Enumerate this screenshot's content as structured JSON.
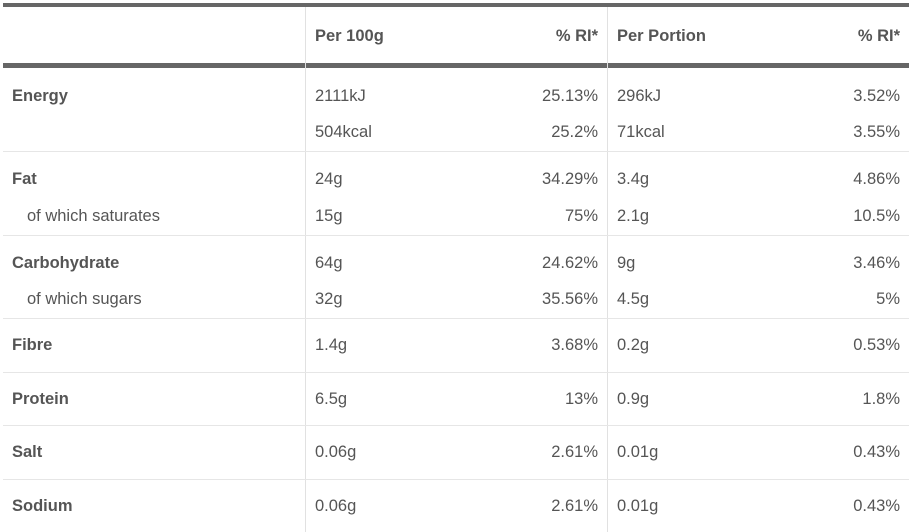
{
  "header": {
    "per100_label": "Per 100g",
    "ri1_label": "% RI*",
    "perportion_label": "Per Portion",
    "ri2_label": "% RI*"
  },
  "rows": [
    {
      "label": "Energy",
      "per100": "2111kJ",
      "ri100": "25.13%",
      "portion": "296kJ",
      "riportion": "3.52%"
    },
    {
      "label": "",
      "per100": "504kcal",
      "ri100": "25.2%",
      "portion": "71kcal",
      "riportion": "3.55%"
    },
    {
      "label": "Fat",
      "per100": "24g",
      "ri100": "34.29%",
      "portion": "3.4g",
      "riportion": "4.86%"
    },
    {
      "label": "of which saturates",
      "per100": "15g",
      "ri100": "75%",
      "portion": "2.1g",
      "riportion": "10.5%"
    },
    {
      "label": "Carbohydrate",
      "per100": "64g",
      "ri100": "24.62%",
      "portion": "9g",
      "riportion": "3.46%"
    },
    {
      "label": "of which sugars",
      "per100": "32g",
      "ri100": "35.56%",
      "portion": "4.5g",
      "riportion": "5%"
    },
    {
      "label": "Fibre",
      "per100": "1.4g",
      "ri100": "3.68%",
      "portion": "0.2g",
      "riportion": "0.53%"
    },
    {
      "label": "Protein",
      "per100": "6.5g",
      "ri100": "13%",
      "portion": "0.9g",
      "riportion": "1.8%"
    },
    {
      "label": "Salt",
      "per100": "0.06g",
      "ri100": "2.61%",
      "portion": "0.01g",
      "riportion": "0.43%"
    },
    {
      "label": "Sodium",
      "per100": "0.06g",
      "ri100": "2.61%",
      "portion": "0.01g",
      "riportion": "0.43%"
    }
  ]
}
